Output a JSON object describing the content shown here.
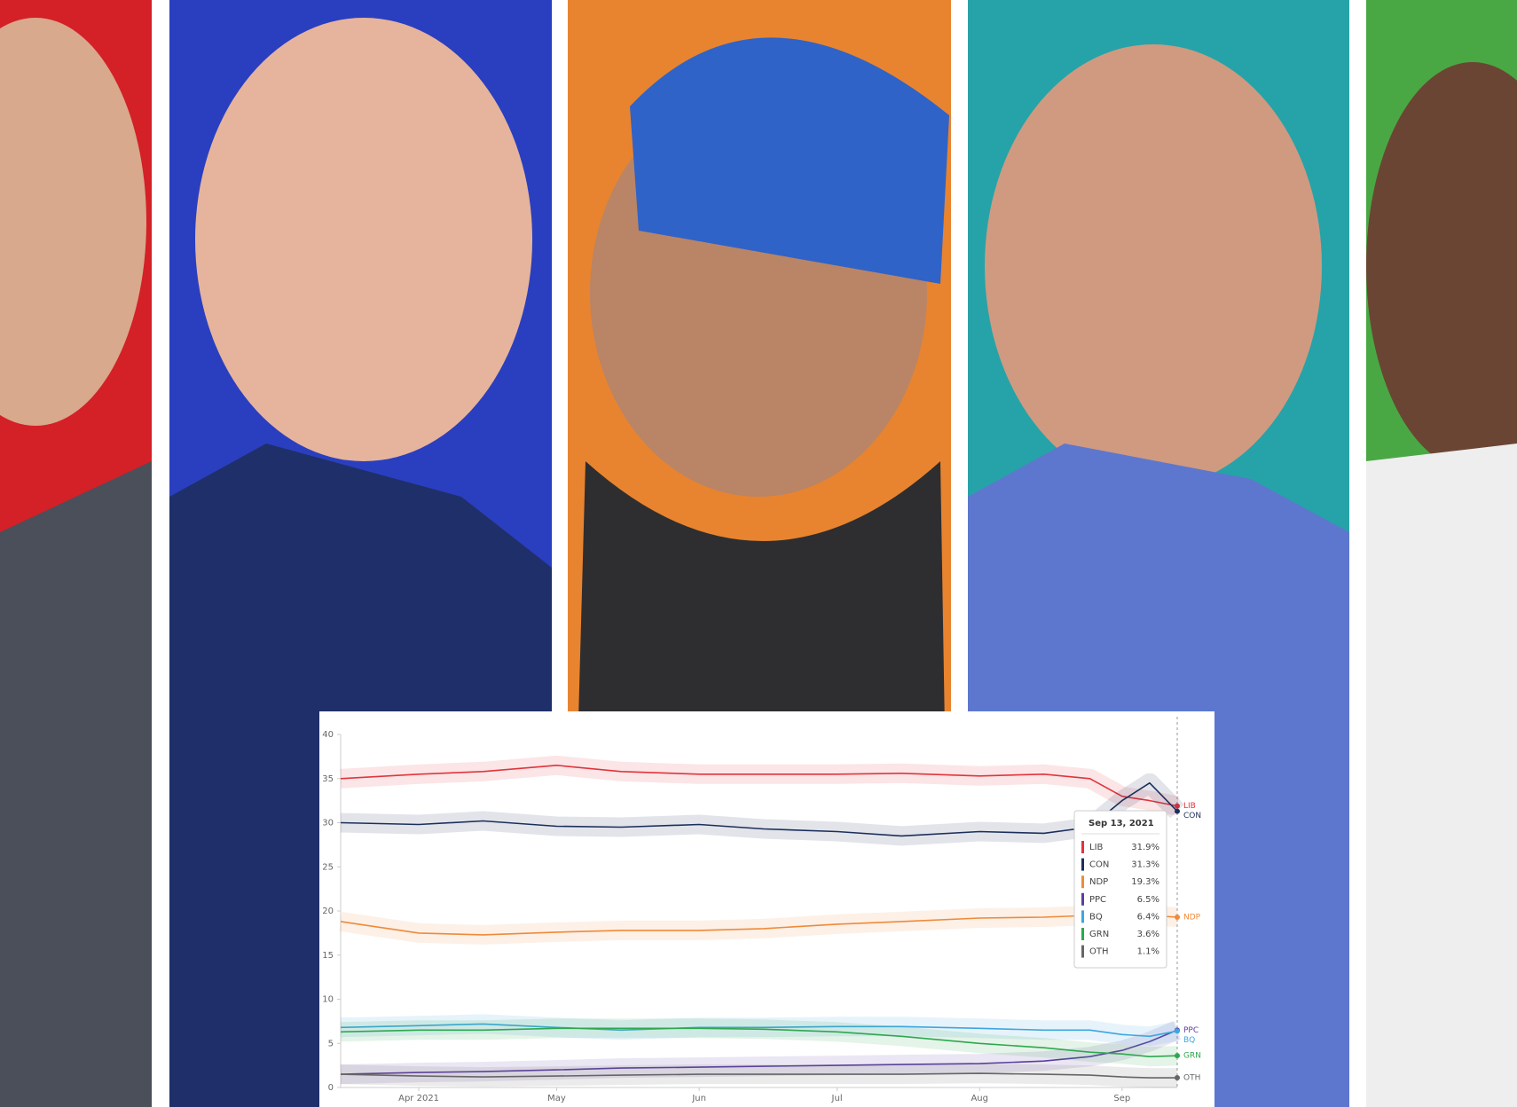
{
  "chart_data": {
    "type": "line",
    "tooltip_title": "Sep 13, 2021",
    "x": [
      "2021-03-15",
      "2021-04-01",
      "2021-04-15",
      "2021-05-01",
      "2021-05-15",
      "2021-06-01",
      "2021-06-15",
      "2021-07-01",
      "2021-07-15",
      "2021-08-01",
      "2021-08-15",
      "2021-08-25",
      "2021-09-01",
      "2021-09-07",
      "2021-09-13"
    ],
    "xlim": [
      "2021-03-15",
      "2021-09-13"
    ],
    "xticks": [
      {
        "value": "2021-04-01",
        "label": "Apr 2021"
      },
      {
        "value": "2021-05-01",
        "label": "May"
      },
      {
        "value": "2021-06-01",
        "label": "Jun"
      },
      {
        "value": "2021-07-01",
        "label": "Jul"
      },
      {
        "value": "2021-08-01",
        "label": "Aug"
      },
      {
        "value": "2021-09-01",
        "label": "Sep"
      }
    ],
    "ylim": [
      0,
      40
    ],
    "yticks": [
      0,
      5,
      10,
      15,
      20,
      25,
      30,
      35,
      40
    ],
    "grid": false,
    "series": [
      {
        "name": "LIB",
        "color": "#e0353d",
        "values": [
          35,
          35.5,
          35.8,
          36.5,
          35.8,
          35.5,
          35.5,
          35.5,
          35.6,
          35.3,
          35.5,
          35,
          33,
          32.5,
          31.9
        ],
        "value_labels": [
          null,
          null,
          null,
          null,
          null,
          null,
          null,
          null,
          null,
          null,
          null,
          null,
          null,
          null,
          "31.9%"
        ]
      },
      {
        "name": "CON",
        "color": "#1c2f5c",
        "values": [
          30,
          29.8,
          30.2,
          29.6,
          29.5,
          29.8,
          29.3,
          29,
          28.5,
          29,
          28.8,
          29.5,
          32.5,
          34.5,
          31.3
        ],
        "value_labels": [
          null,
          null,
          null,
          null,
          null,
          null,
          null,
          null,
          null,
          null,
          null,
          null,
          null,
          null,
          "31.3%"
        ]
      },
      {
        "name": "NDP",
        "color": "#ef8a3a",
        "values": [
          18.8,
          17.5,
          17.3,
          17.6,
          17.8,
          17.8,
          18,
          18.5,
          18.8,
          19.2,
          19.3,
          19.5,
          19.5,
          19.5,
          19.3
        ],
        "value_labels": [
          null,
          null,
          null,
          null,
          null,
          null,
          null,
          null,
          null,
          null,
          null,
          null,
          null,
          null,
          "19.3%"
        ]
      },
      {
        "name": "PPC",
        "color": "#5b3ea0",
        "values": [
          1.5,
          1.7,
          1.8,
          2,
          2.2,
          2.3,
          2.4,
          2.5,
          2.6,
          2.7,
          3,
          3.5,
          4.2,
          5.2,
          6.5
        ],
        "value_labels": [
          null,
          null,
          null,
          null,
          null,
          null,
          null,
          null,
          null,
          null,
          null,
          null,
          null,
          null,
          "6.5%"
        ]
      },
      {
        "name": "BQ",
        "color": "#3ea6df",
        "values": [
          6.8,
          7,
          7.2,
          6.8,
          6.5,
          6.8,
          6.8,
          6.9,
          6.9,
          6.7,
          6.5,
          6.5,
          6,
          5.8,
          6.4
        ],
        "value_labels": [
          null,
          null,
          null,
          null,
          null,
          null,
          null,
          null,
          null,
          null,
          null,
          null,
          null,
          null,
          "6.4%"
        ]
      },
      {
        "name": "GRN",
        "color": "#2ea84e",
        "values": [
          6.3,
          6.5,
          6.5,
          6.7,
          6.7,
          6.7,
          6.6,
          6.3,
          5.8,
          5,
          4.5,
          4,
          3.8,
          3.5,
          3.6
        ],
        "value_labels": [
          null,
          null,
          null,
          null,
          null,
          null,
          null,
          null,
          null,
          null,
          null,
          null,
          null,
          null,
          "3.6%"
        ]
      },
      {
        "name": "OTH",
        "color": "#666666",
        "values": [
          1.5,
          1.3,
          1.2,
          1.3,
          1.4,
          1.5,
          1.5,
          1.5,
          1.5,
          1.6,
          1.5,
          1.4,
          1.2,
          1.1,
          1.1
        ],
        "value_labels": [
          null,
          null,
          null,
          null,
          null,
          null,
          null,
          null,
          null,
          null,
          null,
          null,
          null,
          null,
          "1.1%"
        ]
      }
    ]
  }
}
